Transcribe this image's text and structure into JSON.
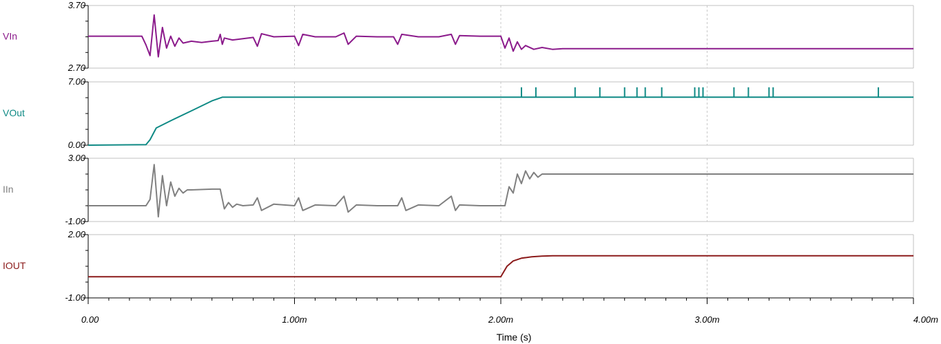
{
  "chart_data": {
    "type": "line",
    "xlabel": "Time (s)",
    "xlim": [
      0,
      0.004
    ],
    "x_ticks": [
      {
        "value": 0,
        "label": "0.00"
      },
      {
        "value": 0.001,
        "label": "1.00m"
      },
      {
        "value": 0.002,
        "label": "2.00m"
      },
      {
        "value": 0.003,
        "label": "3.00m"
      },
      {
        "value": 0.004,
        "label": "4.00m"
      }
    ],
    "grid": "vertical dashed at x ticks",
    "panels": [
      {
        "name": "VIn",
        "color": "#8b1a8b",
        "ylim": [
          2.7,
          3.7
        ],
        "ytick_labels": [
          "3.70",
          "2.70"
        ],
        "x": [
          0,
          0.00026,
          0.00028,
          0.0003,
          0.00032,
          0.00034,
          0.00036,
          0.00038,
          0.0004,
          0.00042,
          0.00044,
          0.00046,
          0.0005,
          0.00055,
          0.0006,
          0.00063,
          0.00064,
          0.00065,
          0.00066,
          0.0007,
          0.0008,
          0.00082,
          0.00084,
          0.0009,
          0.001,
          0.00102,
          0.00104,
          0.0011,
          0.0012,
          0.00124,
          0.00126,
          0.0013,
          0.0014,
          0.00148,
          0.0015,
          0.00152,
          0.0016,
          0.0017,
          0.00176,
          0.00178,
          0.0018,
          0.0019,
          0.002,
          0.00202,
          0.00204,
          0.00206,
          0.00208,
          0.0021,
          0.00212,
          0.00216,
          0.0022,
          0.00225,
          0.0023,
          0.003,
          0.004
        ],
        "values": [
          3.21,
          3.21,
          3.07,
          2.9,
          3.55,
          2.88,
          3.35,
          3.02,
          3.21,
          3.05,
          3.18,
          3.1,
          3.13,
          3.11,
          3.13,
          3.14,
          3.24,
          3.08,
          3.18,
          3.15,
          3.19,
          3.05,
          3.25,
          3.2,
          3.21,
          3.06,
          3.24,
          3.2,
          3.2,
          3.26,
          3.08,
          3.21,
          3.2,
          3.2,
          3.08,
          3.24,
          3.2,
          3.2,
          3.24,
          3.08,
          3.22,
          3.21,
          3.21,
          3.02,
          3.18,
          2.97,
          3.12,
          3.0,
          3.06,
          3.0,
          3.03,
          3.0,
          3.01,
          3.01,
          3.01
        ]
      },
      {
        "name": "VOut",
        "color": "#0f8a85",
        "ylim": [
          0,
          7
        ],
        "ytick_labels": [
          "7.00",
          "0.00"
        ],
        "x": [
          0,
          0.00028,
          0.0003,
          0.00033,
          0.0004,
          0.0005,
          0.0006,
          0.00065,
          0.001,
          0.002,
          0.0021,
          0.003,
          0.004
        ],
        "values": [
          0,
          0.05,
          0.6,
          1.9,
          2.7,
          3.8,
          4.9,
          5.3,
          5.3,
          5.3,
          5.3,
          5.3,
          5.3
        ],
        "spikes_x": [
          0.0021,
          0.00217,
          0.00236,
          0.00248,
          0.0026,
          0.00266,
          0.0027,
          0.00278,
          0.00294,
          0.00296,
          0.00298,
          0.00313,
          0.0032,
          0.0033,
          0.00332,
          0.00383
        ],
        "spikes_top": 6.4
      },
      {
        "name": "IIn",
        "color": "#808080",
        "ylim": [
          -1,
          3
        ],
        "ytick_labels": [
          "3.00",
          "-1.00"
        ],
        "x": [
          0,
          0.00028,
          0.0003,
          0.00032,
          0.00034,
          0.00036,
          0.00038,
          0.0004,
          0.00042,
          0.00044,
          0.00046,
          0.00048,
          0.0005,
          0.0006,
          0.00064,
          0.00066,
          0.00068,
          0.0007,
          0.00072,
          0.00075,
          0.0008,
          0.00082,
          0.00084,
          0.0009,
          0.001,
          0.00102,
          0.00104,
          0.0011,
          0.0012,
          0.00124,
          0.00126,
          0.0013,
          0.0014,
          0.0015,
          0.00152,
          0.00154,
          0.0016,
          0.0017,
          0.00176,
          0.00178,
          0.0018,
          0.0019,
          0.002,
          0.00202,
          0.00204,
          0.00206,
          0.00208,
          0.0021,
          0.00212,
          0.00214,
          0.00216,
          0.00218,
          0.0022,
          0.00225,
          0.004
        ],
        "values": [
          0,
          0,
          0.4,
          2.6,
          -0.7,
          1.9,
          0.0,
          1.5,
          0.6,
          1.1,
          0.8,
          1.0,
          1.0,
          1.05,
          1.05,
          -0.2,
          0.2,
          -0.1,
          0.1,
          0.0,
          0.05,
          0.5,
          -0.3,
          0.1,
          0.0,
          0.5,
          -0.3,
          0.05,
          0.0,
          0.6,
          -0.4,
          0.05,
          0.0,
          0.0,
          0.5,
          -0.3,
          0.05,
          0.0,
          0.6,
          -0.3,
          0.05,
          0.0,
          0.0,
          0.0,
          1.2,
          0.8,
          2.0,
          1.4,
          2.2,
          1.7,
          2.1,
          1.8,
          2.0,
          2.0,
          2.0
        ]
      },
      {
        "name": "IOUT",
        "color": "#8b1a1a",
        "ylim": [
          -1,
          2
        ],
        "ytick_labels": [
          "2.00",
          "-1.00"
        ],
        "x": [
          0,
          0.002,
          0.00203,
          0.00206,
          0.0021,
          0.00215,
          0.0022,
          0.00225,
          0.004
        ],
        "values": [
          0,
          0,
          0.5,
          0.75,
          0.88,
          0.95,
          0.98,
          1.0,
          1.0
        ]
      }
    ]
  }
}
